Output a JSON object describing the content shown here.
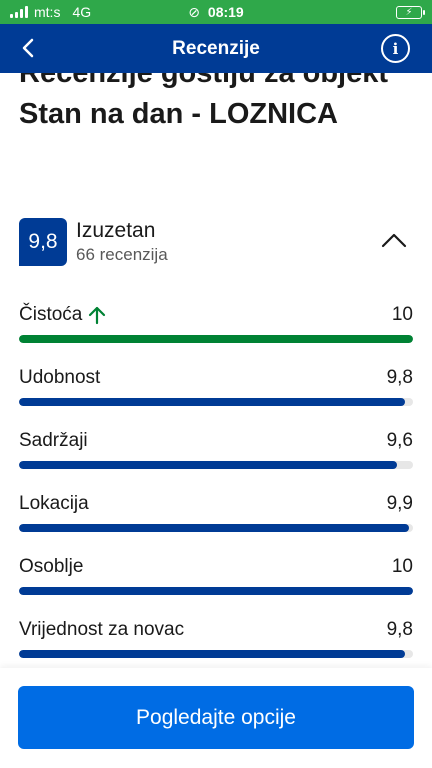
{
  "status_bar": {
    "carrier": "mt:s",
    "network": "4G",
    "time": "08:19",
    "background": "#2fa84a"
  },
  "nav": {
    "title": "Recenzije",
    "background": "#003b95",
    "back_icon": "chevron-left-icon",
    "info_icon": "info-icon"
  },
  "page": {
    "title": "Recenzije gostiju za objekt Stan na dan - LOZNICA"
  },
  "summary": {
    "score": "9,8",
    "label": "Izuzetan",
    "review_count": "66 recenzija",
    "collapse_icon": "chevron-up-icon"
  },
  "categories": [
    {
      "name": "Čistoća",
      "score": "10",
      "fill": 1.0,
      "highlight": true,
      "color": "#008234"
    },
    {
      "name": "Udobnost",
      "score": "9,8",
      "fill": 0.98,
      "highlight": false,
      "color": "#003b95"
    },
    {
      "name": "Sadržaji",
      "score": "9,6",
      "fill": 0.96,
      "highlight": false,
      "color": "#003b95"
    },
    {
      "name": "Lokacija",
      "score": "9,9",
      "fill": 0.99,
      "highlight": false,
      "color": "#003b95"
    },
    {
      "name": "Osoblje",
      "score": "10",
      "fill": 1.0,
      "highlight": false,
      "color": "#003b95"
    },
    {
      "name": "Vrijednost za novac",
      "score": "9,8",
      "fill": 0.98,
      "highlight": false,
      "color": "#003b95"
    }
  ],
  "cta": {
    "label": "Pogledajte opcije",
    "color": "#006ce4"
  }
}
